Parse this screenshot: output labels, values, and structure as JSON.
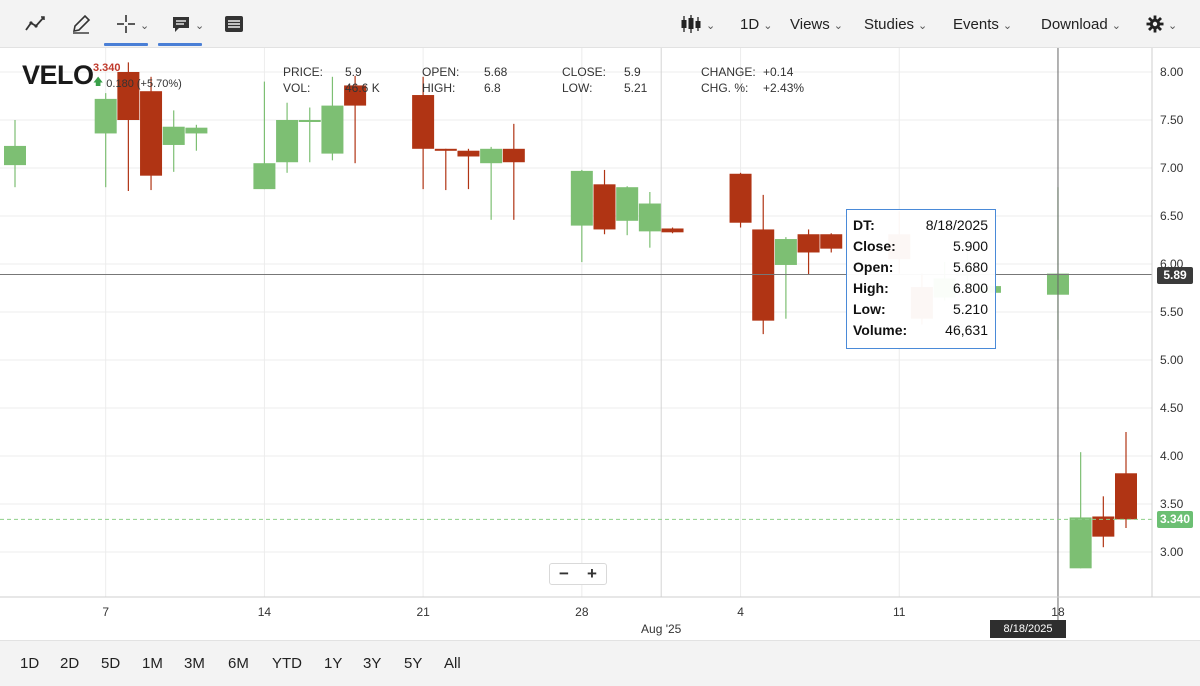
{
  "toolbar": {
    "tools": [
      {
        "name": "draw-line-tool",
        "icon": "trend-line-icon",
        "active": false
      },
      {
        "name": "annotate-tool",
        "icon": "pencil-icon",
        "active": false
      },
      {
        "name": "crosshair-tool",
        "icon": "crosshair-icon",
        "active": true
      },
      {
        "name": "comment-tool",
        "icon": "comment-icon",
        "active": true
      },
      {
        "name": "news-tool",
        "icon": "news-icon",
        "active": false
      }
    ],
    "chart_type_icon": "candlestick-icon",
    "interval": "1D",
    "menus": [
      "Views",
      "Studies",
      "Events",
      "Download"
    ],
    "settings_icon": "gear-icon",
    "caret": "⌄"
  },
  "symbol": {
    "ticker": "VELO",
    "last_price": "3.340",
    "change": "0.180 (+5.70%)",
    "up_icon": "up-arrow-icon"
  },
  "ohlc": {
    "price_label": "PRICE:",
    "price": "5.9",
    "vol_label": "VOL:",
    "vol": "46.6 K",
    "open_label": "OPEN:",
    "open": "5.68",
    "high_label": "HIGH:",
    "high": "6.8",
    "close_label": "CLOSE:",
    "close": "5.9",
    "low_label": "LOW:",
    "low": "5.21",
    "change_label": "CHANGE:",
    "change": "+0.14",
    "chgpct_label": "CHG. %:",
    "chgpct": "+2.43%"
  },
  "tooltip": {
    "rows": [
      {
        "key": "DT:",
        "value": "8/18/2025"
      },
      {
        "key": "Close:",
        "value": "5.900"
      },
      {
        "key": "Open:",
        "value": "5.680"
      },
      {
        "key": "High:",
        "value": "6.800"
      },
      {
        "key": "Low:",
        "value": "5.210"
      },
      {
        "key": "Volume:",
        "value": "46,631"
      }
    ]
  },
  "zoom": {
    "minus": "−",
    "plus": "+"
  },
  "crosshair": {
    "price_label": "5.89",
    "date_label": "8/18/2025",
    "price": 5.89
  },
  "last_price_tag": {
    "label": "3.340",
    "price": 3.34
  },
  "range_buttons": [
    "1D",
    "2D",
    "5D",
    "1M",
    "3M",
    "6M",
    "YTD",
    "1Y",
    "3Y",
    "5Y",
    "All"
  ],
  "colors": {
    "up": "#7dbf73",
    "down": "#b03414",
    "accent": "#4a7fd6",
    "crosshair_tag": "#3a3a3a",
    "last_price_tag": "#6cbf73"
  },
  "chart_data": {
    "type": "candlestick",
    "title": "",
    "xlabel": "",
    "ylabel": "",
    "ylim": [
      2.5,
      8.2
    ],
    "y_ticks": [
      "8.00",
      "7.50",
      "7.00",
      "6.50",
      "6.00",
      "5.50",
      "5.00",
      "4.50",
      "4.00",
      "3.50",
      "3.00"
    ],
    "x_tick_labels": [
      "7",
      "14",
      "21",
      "28",
      "Aug '25",
      "4",
      "11",
      "18"
    ],
    "grid": true,
    "candles": [
      {
        "date": "2025-07-03",
        "open": 7.03,
        "high": 7.5,
        "low": 6.8,
        "close": 7.23
      },
      {
        "date": "2025-07-07",
        "open": 7.36,
        "high": 7.78,
        "low": 6.8,
        "close": 7.72
      },
      {
        "date": "2025-07-08",
        "open": 8.0,
        "high": 8.1,
        "low": 6.76,
        "close": 7.5
      },
      {
        "date": "2025-07-09",
        "open": 7.8,
        "high": 7.95,
        "low": 6.77,
        "close": 6.92
      },
      {
        "date": "2025-07-10",
        "open": 7.24,
        "high": 7.6,
        "low": 6.96,
        "close": 7.43
      },
      {
        "date": "2025-07-11",
        "open": 7.36,
        "high": 7.45,
        "low": 7.18,
        "close": 7.42
      },
      {
        "date": "2025-07-14",
        "open": 6.78,
        "high": 7.9,
        "low": 6.78,
        "close": 7.05
      },
      {
        "date": "2025-07-15",
        "open": 7.06,
        "high": 7.68,
        "low": 6.95,
        "close": 7.5
      },
      {
        "date": "2025-07-16",
        "open": 7.49,
        "high": 7.63,
        "low": 7.06,
        "close": 7.5
      },
      {
        "date": "2025-07-17",
        "open": 7.15,
        "high": 7.95,
        "low": 7.08,
        "close": 7.65
      },
      {
        "date": "2025-07-18",
        "open": 7.86,
        "high": 7.96,
        "low": 7.05,
        "close": 7.65
      },
      {
        "date": "2025-07-21",
        "open": 7.76,
        "high": 7.95,
        "low": 6.78,
        "close": 7.2
      },
      {
        "date": "2025-07-22",
        "open": 7.2,
        "high": 7.2,
        "low": 6.77,
        "close": 7.19
      },
      {
        "date": "2025-07-23",
        "open": 7.18,
        "high": 7.2,
        "low": 6.78,
        "close": 7.12
      },
      {
        "date": "2025-07-24",
        "open": 7.05,
        "high": 7.22,
        "low": 6.46,
        "close": 7.2
      },
      {
        "date": "2025-07-25",
        "open": 7.2,
        "high": 7.46,
        "low": 6.46,
        "close": 7.06
      },
      {
        "date": "2025-07-28",
        "open": 6.4,
        "high": 6.98,
        "low": 6.02,
        "close": 6.97
      },
      {
        "date": "2025-07-29",
        "open": 6.83,
        "high": 6.98,
        "low": 6.31,
        "close": 6.36
      },
      {
        "date": "2025-07-30",
        "open": 6.45,
        "high": 6.81,
        "low": 6.3,
        "close": 6.8
      },
      {
        "date": "2025-07-31",
        "open": 6.34,
        "high": 6.75,
        "low": 6.17,
        "close": 6.63
      },
      {
        "date": "2025-08-01",
        "open": 6.37,
        "high": 6.38,
        "low": 6.32,
        "close": 6.33
      },
      {
        "date": "2025-08-04",
        "open": 6.94,
        "high": 6.95,
        "low": 6.38,
        "close": 6.43
      },
      {
        "date": "2025-08-05",
        "open": 6.36,
        "high": 6.72,
        "low": 5.27,
        "close": 5.41
      },
      {
        "date": "2025-08-06",
        "open": 5.99,
        "high": 6.28,
        "low": 5.43,
        "close": 6.26
      },
      {
        "date": "2025-08-07",
        "open": 6.31,
        "high": 6.36,
        "low": 5.89,
        "close": 6.12
      },
      {
        "date": "2025-08-08",
        "open": 6.31,
        "high": 6.32,
        "low": 6.12,
        "close": 6.16
      },
      {
        "date": "2025-08-11",
        "open": 6.31,
        "high": 6.55,
        "low": 5.9,
        "close": 6.05
      },
      {
        "date": "2025-08-12",
        "open": 5.76,
        "high": 5.9,
        "low": 5.37,
        "close": 5.43
      },
      {
        "date": "2025-08-13",
        "open": 5.65,
        "high": 6.02,
        "low": 5.62,
        "close": 5.85
      },
      {
        "date": "2025-08-14",
        "open": 5.9,
        "high": 6.15,
        "low": 5.7,
        "close": 5.9
      },
      {
        "date": "2025-08-15",
        "open": 5.7,
        "high": 5.78,
        "low": 5.7,
        "close": 5.77
      },
      {
        "date": "2025-08-18",
        "open": 5.68,
        "high": 6.8,
        "low": 5.21,
        "close": 5.9
      },
      {
        "date": "2025-08-19",
        "open": 2.83,
        "high": 4.04,
        "low": 2.83,
        "close": 3.36
      },
      {
        "date": "2025-08-20",
        "open": 3.37,
        "high": 3.58,
        "low": 3.05,
        "close": 3.16
      },
      {
        "date": "2025-08-21",
        "open": 3.82,
        "high": 4.25,
        "low": 3.25,
        "close": 3.34
      }
    ]
  }
}
